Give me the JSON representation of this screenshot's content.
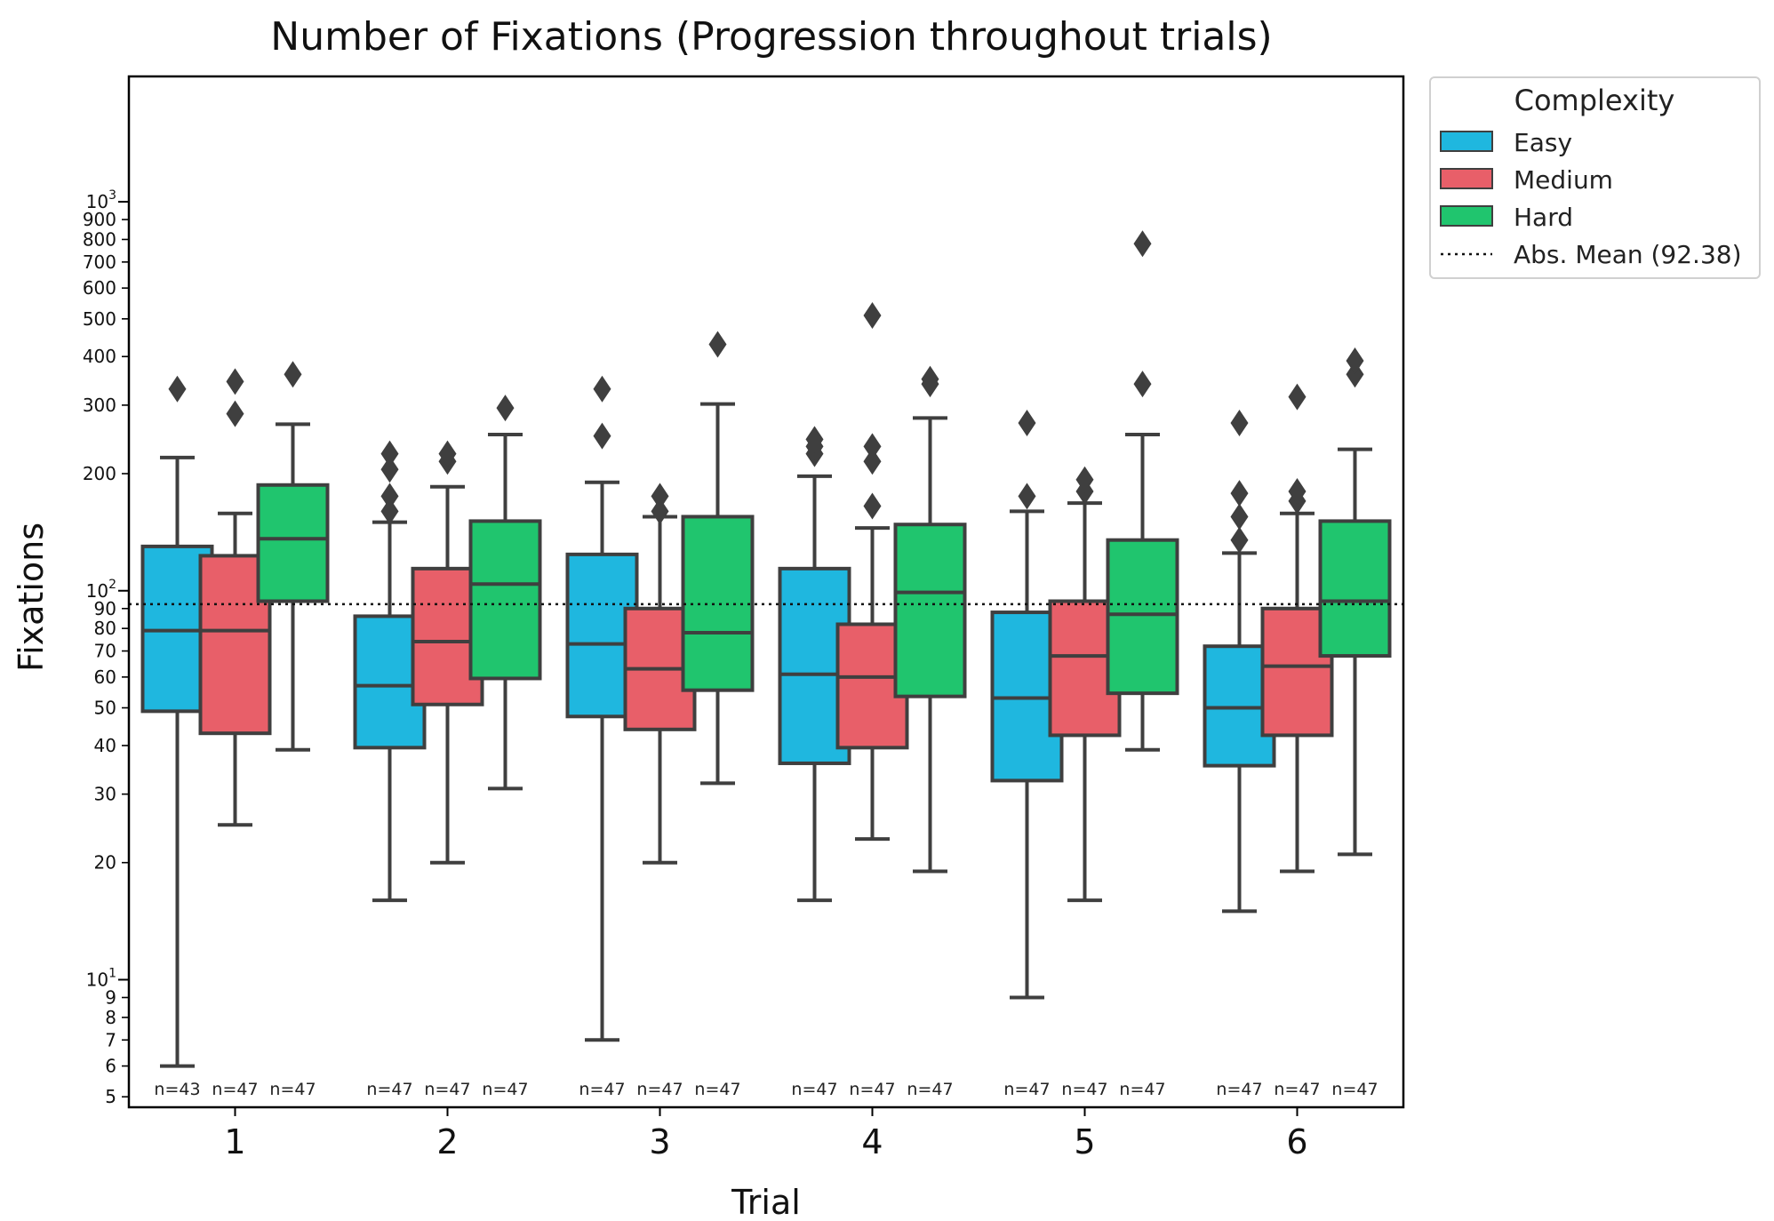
{
  "chart_data": {
    "type": "boxplot",
    "title": "Number of Fixations (Progression throughout trials)",
    "xlabel": "Trial",
    "ylabel": "Fixations",
    "yscale": "log",
    "ylim": [
      4.7,
      2100
    ],
    "categories": [
      "1",
      "2",
      "3",
      "4",
      "5",
      "6"
    ],
    "legend": {
      "title": "Complexity",
      "placement": "outside-top-right",
      "entries": [
        "Easy",
        "Medium",
        "Hard"
      ],
      "mean_label": "Abs. Mean (92.38)"
    },
    "mean_line": 92.38,
    "y_tick_labels": {
      "5": "5",
      "6": "6",
      "7": "7",
      "8": "8",
      "9": "9",
      "20": "20",
      "30": "30",
      "40": "40",
      "50": "50",
      "60": "60",
      "70": "70",
      "80": "80",
      "90": "90",
      "200": "200",
      "300": "300",
      "400": "400",
      "500": "500",
      "600": "600",
      "700": "700",
      "800": "800",
      "900": "900"
    },
    "y_major_ticks": [
      {
        "value": 10,
        "base": "10",
        "exp": "1"
      },
      {
        "value": 100,
        "base": "10",
        "exp": "2"
      },
      {
        "value": 1000,
        "base": "10",
        "exp": "3"
      }
    ],
    "series": [
      {
        "name": "Easy",
        "color": "#1fb7df",
        "boxes": [
          {
            "whisker_low": 6,
            "q1": 49,
            "median": 79,
            "q3": 130,
            "whisker_high": 220,
            "outliers": [
              330
            ],
            "n": "n=43"
          },
          {
            "whisker_low": 16,
            "q1": 39.5,
            "median": 57,
            "q3": 86,
            "whisker_high": 150,
            "outliers": [
              160,
              175,
              205,
              225
            ],
            "n": "n=47"
          },
          {
            "whisker_low": 7,
            "q1": 47.5,
            "median": 73,
            "q3": 124,
            "whisker_high": 190,
            "outliers": [
              250,
              330
            ],
            "n": "n=47"
          },
          {
            "whisker_low": 16,
            "q1": 36,
            "median": 61,
            "q3": 114,
            "whisker_high": 197,
            "outliers": [
              225,
              235,
              245
            ],
            "n": "n=47"
          },
          {
            "whisker_low": 9,
            "q1": 32.5,
            "median": 53,
            "q3": 88,
            "whisker_high": 160,
            "outliers": [
              175,
              270
            ],
            "n": "n=47"
          },
          {
            "whisker_low": 15,
            "q1": 35.5,
            "median": 50,
            "q3": 72,
            "whisker_high": 125,
            "outliers": [
              135,
              155,
              178,
              270
            ],
            "n": "n=47"
          }
        ]
      },
      {
        "name": "Medium",
        "color": "#e85f69",
        "boxes": [
          {
            "whisker_low": 25,
            "q1": 43,
            "median": 79,
            "q3": 123,
            "whisker_high": 158,
            "outliers": [
              285,
              345
            ],
            "n": "n=47"
          },
          {
            "whisker_low": 20,
            "q1": 51,
            "median": 74,
            "q3": 114,
            "whisker_high": 185,
            "outliers": [
              215,
              225
            ],
            "n": "n=47"
          },
          {
            "whisker_low": 20,
            "q1": 44,
            "median": 63,
            "q3": 90,
            "whisker_high": 155,
            "outliers": [
              160,
              175
            ],
            "n": "n=47"
          },
          {
            "whisker_low": 23,
            "q1": 39.5,
            "median": 60,
            "q3": 82,
            "whisker_high": 145,
            "outliers": [
              165,
              215,
              235,
              510
            ],
            "n": "n=47"
          },
          {
            "whisker_low": 16,
            "q1": 42.5,
            "median": 68,
            "q3": 94,
            "whisker_high": 168,
            "outliers": [
              180,
              193
            ],
            "n": "n=47"
          },
          {
            "whisker_low": 19,
            "q1": 42.5,
            "median": 64,
            "q3": 90,
            "whisker_high": 158,
            "outliers": [
              170,
              180,
              315
            ],
            "n": "n=47"
          }
        ]
      },
      {
        "name": "Hard",
        "color": "#20c56e",
        "boxes": [
          {
            "whisker_low": 39,
            "q1": 94,
            "median": 136,
            "q3": 187,
            "whisker_high": 268,
            "outliers": [
              360
            ],
            "n": "n=47"
          },
          {
            "whisker_low": 31,
            "q1": 59.5,
            "median": 104,
            "q3": 151,
            "whisker_high": 252,
            "outliers": [
              295
            ],
            "n": "n=47"
          },
          {
            "whisker_low": 32,
            "q1": 55.5,
            "median": 78,
            "q3": 155,
            "whisker_high": 302,
            "outliers": [
              430
            ],
            "n": "n=47"
          },
          {
            "whisker_low": 19,
            "q1": 53.5,
            "median": 99,
            "q3": 148,
            "whisker_high": 278,
            "outliers": [
              340,
              350
            ],
            "n": "n=47"
          },
          {
            "whisker_low": 39,
            "q1": 54.5,
            "median": 87,
            "q3": 135,
            "whisker_high": 252,
            "outliers": [
              340,
              780
            ],
            "n": "n=47"
          },
          {
            "whisker_low": 21,
            "q1": 68,
            "median": 94,
            "q3": 151,
            "whisker_high": 231,
            "outliers": [
              360,
              390
            ],
            "n": "n=47"
          }
        ]
      }
    ]
  }
}
